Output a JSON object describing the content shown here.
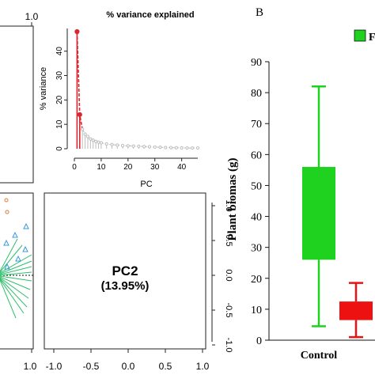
{
  "panel_b_label": "B",
  "variance_inset": {
    "title": "% variance explained",
    "xlabel": "PC",
    "ylabel": "% variance",
    "x_ticks": [
      "0",
      "10",
      "20",
      "30",
      "40"
    ],
    "y_ticks": [
      "0",
      "10",
      "20",
      "30",
      "40"
    ]
  },
  "corner_tick": "1.0",
  "pc_box": {
    "title": "PC2",
    "subtitle": "(13.95%)"
  },
  "pc_box_x_ticks": [
    "-1.0",
    "-0.5",
    "0.0",
    "0.5",
    "1.0"
  ],
  "pc_box_y_ticks": [
    "1.0",
    "0.5",
    "0.0",
    "-0.5",
    "-1.0"
  ],
  "left_bottom_tick": "1.0",
  "legend_fragment": "F",
  "colors": {
    "variance_red": "#d9262f",
    "scree_grey": "#bdbdbd",
    "green": "#1fd21f",
    "red": "#ee1111",
    "biplot_green": "#2bbf6a",
    "biplot_blue": "#3a9ad9",
    "biplot_orange": "#e07a30"
  },
  "chart_data": [
    {
      "type": "line",
      "title": "% variance explained",
      "xlabel": "PC",
      "ylabel": "% variance",
      "xlim": [
        0,
        46
      ],
      "ylim": [
        0,
        48
      ],
      "series": [
        {
          "x": [
            1,
            2,
            3,
            4,
            5,
            6,
            7,
            8,
            9,
            10,
            12,
            14,
            16,
            18,
            20,
            22,
            24,
            26,
            28,
            30,
            32,
            34,
            36,
            38,
            40,
            42,
            44,
            46
          ],
          "values": [
            48,
            14,
            8,
            6,
            5,
            4,
            3.5,
            3,
            2.7,
            2.4,
            2,
            1.7,
            1.5,
            1.3,
            1.2,
            1.1,
            1,
            0.9,
            0.8,
            0.7,
            0.6,
            0.5,
            0.45,
            0.4,
            0.35,
            0.3,
            0.3,
            0.3
          ]
        }
      ]
    },
    {
      "type": "box",
      "ylabel": "Plant biomas (g)",
      "ylim": [
        0,
        90
      ],
      "y_ticks": [
        0,
        10,
        20,
        30,
        40,
        50,
        60,
        70,
        80,
        90
      ],
      "categories": [
        "Control",
        ""
      ],
      "boxes": [
        {
          "category": "Control",
          "min": 4.5,
          "q1": 26,
          "q3": 56,
          "max": 82
        },
        {
          "category": "",
          "min": 1,
          "q1": 6.5,
          "q3": 12.5,
          "max": 18.5
        }
      ]
    }
  ]
}
